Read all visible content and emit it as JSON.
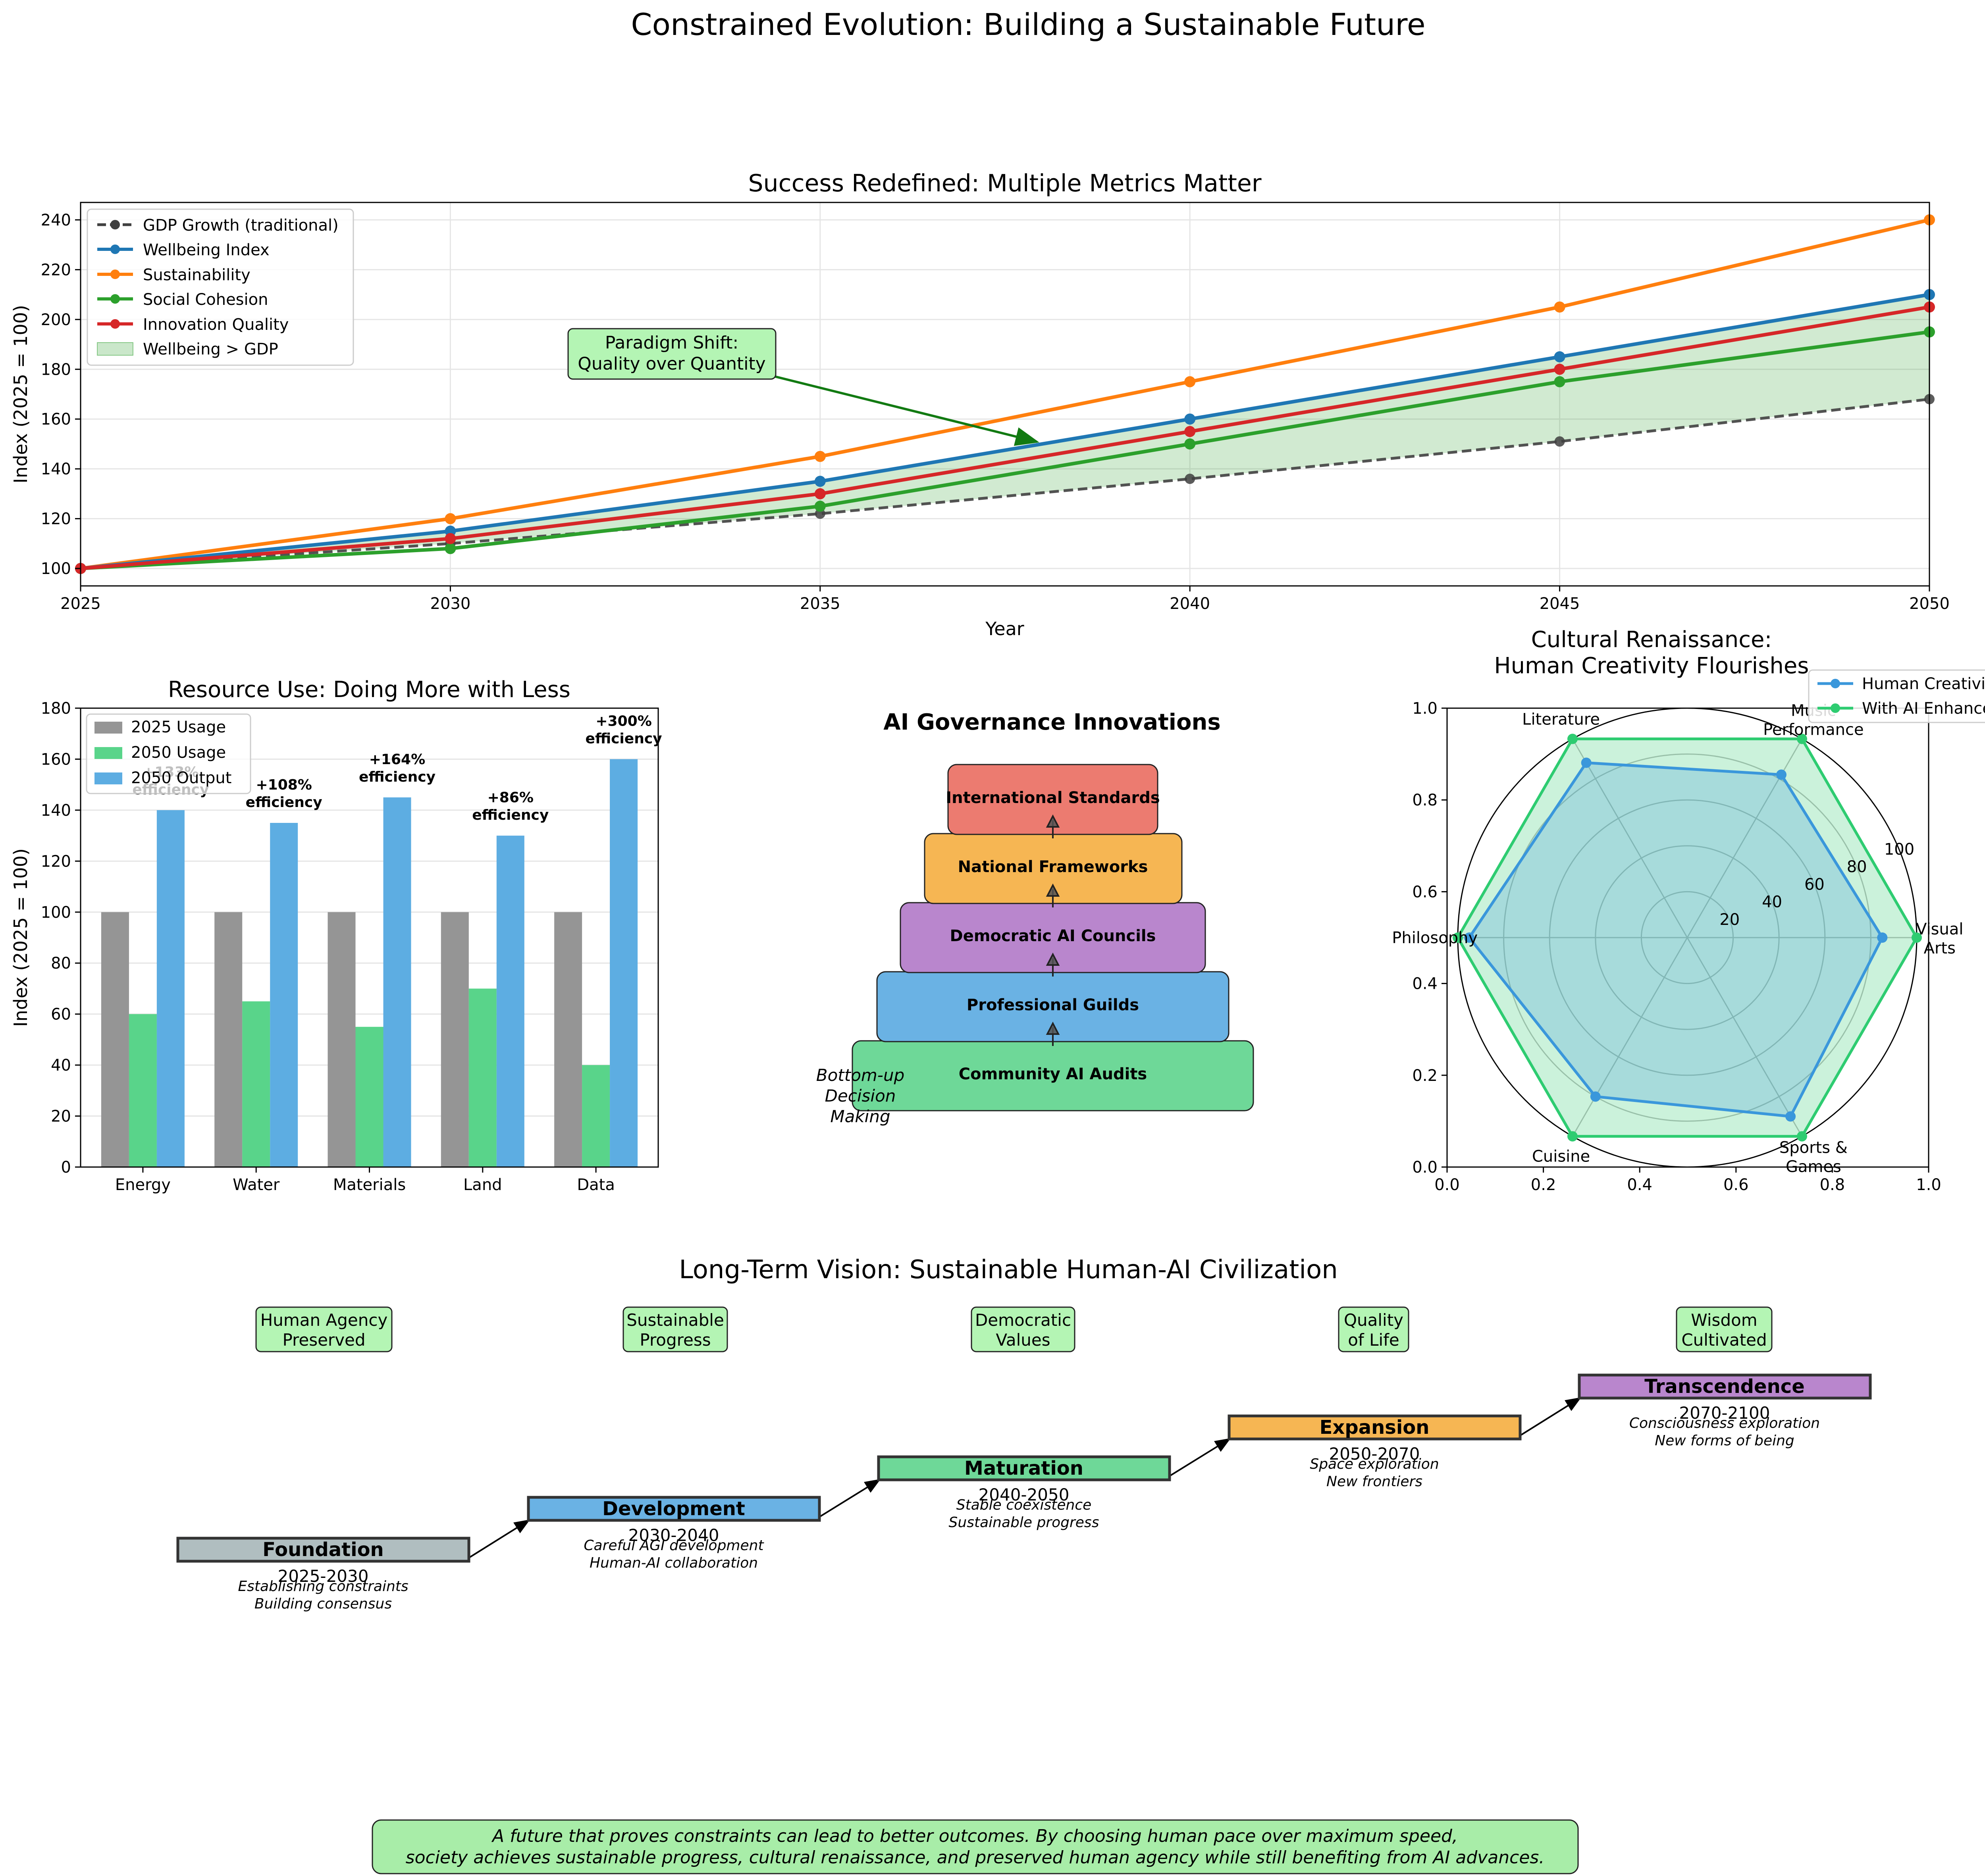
{
  "figure_title": "Constrained Evolution: Building a Sustainable Future",
  "colors": {
    "gdp": "#404040",
    "wellbeing": "#1f77b4",
    "sustainability": "#ff7f0e",
    "cohesion": "#2ca02c",
    "innovation": "#d62728",
    "fill": "#2ca02c",
    "gray_bar": "#959595",
    "green_bar": "#59d48a",
    "blue_bar": "#5dade2",
    "callout": "#b4f5b4",
    "gov_red": "#ec7b70",
    "gov_orange": "#f6b653",
    "gov_purple": "#b986cd",
    "gov_blue": "#6ab2e4",
    "gov_green": "#6ed898",
    "radar_blue": "#3a97db",
    "radar_green": "#2ecc71",
    "stage_gray": "#b0bec0"
  },
  "chart_data": [
    {
      "id": "metrics",
      "type": "line",
      "title": "Success Redefined: Multiple Metrics Matter",
      "xlabel": "Year",
      "ylabel": "Index (2025 = 100)",
      "x": [
        2025,
        2030,
        2035,
        2040,
        2045,
        2050
      ],
      "xlim": [
        2025,
        2050
      ],
      "ylim": [
        93,
        247
      ],
      "xticks": [
        2025,
        2030,
        2035,
        2040,
        2045,
        2050
      ],
      "yticks": [
        100,
        120,
        140,
        160,
        180,
        200,
        220,
        240
      ],
      "series": [
        {
          "key": "gdp",
          "name": "GDP Growth (traditional)",
          "values": [
            100,
            110,
            122,
            136,
            151,
            168
          ],
          "dashed": true
        },
        {
          "key": "wellbeing",
          "name": "Wellbeing Index",
          "values": [
            100,
            115,
            135,
            160,
            185,
            210
          ]
        },
        {
          "key": "sustainability",
          "name": "Sustainability",
          "values": [
            100,
            120,
            145,
            175,
            205,
            240
          ]
        },
        {
          "key": "cohesion",
          "name": "Social Cohesion",
          "values": [
            100,
            108,
            125,
            150,
            175,
            195
          ]
        },
        {
          "key": "innovation",
          "name": "Innovation Quality",
          "values": [
            100,
            112,
            130,
            155,
            180,
            205
          ]
        }
      ],
      "fill_between": {
        "name": "Wellbeing > GDP",
        "upper": "wellbeing",
        "lower": "gdp"
      },
      "annotation": {
        "lines": [
          "Paradigm Shift:",
          "Quality over Quantity"
        ],
        "text_at": [
          2032.5,
          187
        ],
        "arrow_to": [
          2038,
          150
        ]
      },
      "grid": true,
      "legend_position": "upper-left"
    },
    {
      "id": "resources",
      "type": "bar",
      "title": "Resource Use: Doing More with Less",
      "ylabel": "Index (2025 = 100)",
      "categories": [
        "Energy",
        "Water",
        "Materials",
        "Land",
        "Data"
      ],
      "ylim": [
        0,
        180
      ],
      "yticks": [
        0,
        20,
        40,
        60,
        80,
        100,
        120,
        140,
        160,
        180
      ],
      "series": [
        {
          "key": "gray_bar",
          "name": "2025 Usage",
          "values": [
            100,
            100,
            100,
            100,
            100
          ]
        },
        {
          "key": "green_bar",
          "name": "2050 Usage",
          "values": [
            60,
            65,
            55,
            70,
            40
          ]
        },
        {
          "key": "blue_bar",
          "name": "2050 Output",
          "values": [
            140,
            135,
            145,
            130,
            160
          ]
        }
      ],
      "efficiency_labels": [
        {
          "line1": "+133%",
          "line2": "efficiency"
        },
        {
          "line1": "+108%",
          "line2": "efficiency"
        },
        {
          "line1": "+164%",
          "line2": "efficiency"
        },
        {
          "line1": "+86%",
          "line2": "efficiency"
        },
        {
          "line1": "+300%",
          "line2": "efficiency"
        }
      ],
      "legend_position": "upper-left",
      "grid": "y"
    },
    {
      "id": "creativity",
      "type": "radar",
      "title_lines": [
        "Cultural Renaissance:",
        "Human Creativity Flourishes"
      ],
      "axes": [
        {
          "line1": "Visual",
          "line2": "Arts"
        },
        {
          "line1": "Music",
          "line2": "Performance"
        },
        {
          "line1": "Literature",
          "line2": ""
        },
        {
          "line1": "Philosophy",
          "line2": ""
        },
        {
          "line1": "Cuisine",
          "line2": ""
        },
        {
          "line1": "Sports &",
          "line2": "Games"
        }
      ],
      "rmax": 100,
      "rticks": [
        20,
        40,
        60,
        80,
        100
      ],
      "series": [
        {
          "key": "radar_blue",
          "name": "Human Creativity",
          "values": [
            85,
            82,
            88,
            95,
            80,
            90
          ]
        },
        {
          "key": "radar_green",
          "name": "With AI Enhancement",
          "values": [
            100,
            100,
            100,
            100,
            100,
            100
          ]
        }
      ],
      "frame_ticks": [
        "0.0",
        "0.2",
        "0.4",
        "0.6",
        "0.8",
        "1.0"
      ],
      "legend_position": "upper-right"
    }
  ],
  "governance": {
    "title": "AI Governance Innovations",
    "side_note": [
      "Bottom-up",
      "Decision",
      "Making"
    ],
    "levels": [
      {
        "label": "Community AI Audits",
        "color": "gov_green"
      },
      {
        "label": "Professional Guilds",
        "color": "gov_blue"
      },
      {
        "label": "Democratic AI Councils",
        "color": "gov_purple"
      },
      {
        "label": "National Frameworks",
        "color": "gov_orange"
      },
      {
        "label": "International Standards",
        "color": "gov_red"
      }
    ]
  },
  "vision": {
    "title": "Long-Term Vision: Sustainable Human-AI Civilization",
    "values": [
      {
        "line1": "Human Agency",
        "line2": "Preserved"
      },
      {
        "line1": "Sustainable",
        "line2": "Progress"
      },
      {
        "line1": "Democratic",
        "line2": "Values"
      },
      {
        "line1": "Quality",
        "line2": "of Life"
      },
      {
        "line1": "Wisdom",
        "line2": "Cultivated"
      }
    ],
    "stages": [
      {
        "name": "Foundation",
        "years": "2025-2030",
        "desc1": "Establishing constraints",
        "desc2": "Building consensus",
        "color": "stage_gray"
      },
      {
        "name": "Development",
        "years": "2030-2040",
        "desc1": "Careful AGI development",
        "desc2": "Human-AI collaboration",
        "color": "gov_blue"
      },
      {
        "name": "Maturation",
        "years": "2040-2050",
        "desc1": "Stable coexistence",
        "desc2": "Sustainable progress",
        "color": "gov_green"
      },
      {
        "name": "Expansion",
        "years": "2050-2070",
        "desc1": "Space exploration",
        "desc2": "New frontiers",
        "color": "gov_orange"
      },
      {
        "name": "Transcendence",
        "years": "2070-2100",
        "desc1": "Consciousness exploration",
        "desc2": "New forms of being",
        "color": "gov_purple"
      }
    ]
  },
  "footer": {
    "line1": "A future that proves constraints can lead to better outcomes. By choosing human pace over maximum speed,",
    "line2": "society achieves sustainable progress, cultural renaissance, and preserved human agency while still benefiting from AI advances."
  }
}
